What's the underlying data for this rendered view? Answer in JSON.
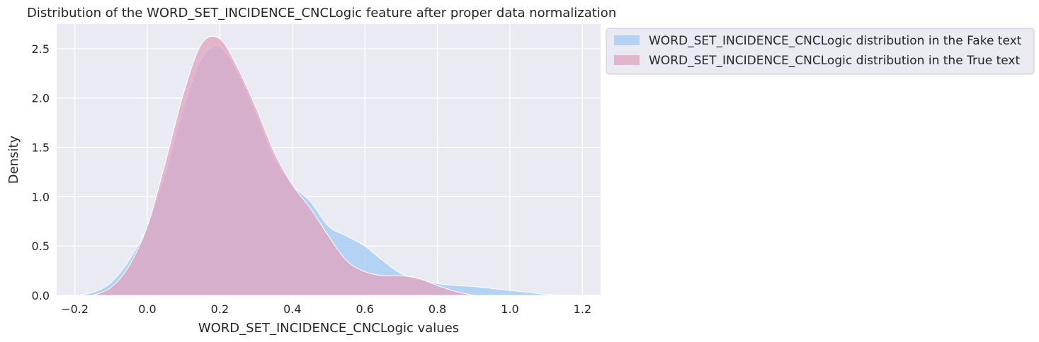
{
  "chart_data": {
    "type": "area",
    "title": "Distribution of the WORD_SET_INCIDENCE_CNCLogic feature after proper data normalization",
    "xlabel": "WORD_SET_INCIDENCE_CNCLogic values",
    "ylabel": "Density",
    "xlim": [
      -0.25,
      1.25
    ],
    "ylim": [
      0,
      2.75
    ],
    "xticks": [
      -0.2,
      0.0,
      0.2,
      0.4,
      0.6,
      0.8,
      1.0,
      1.2
    ],
    "xtick_labels": [
      "−0.2",
      "0.0",
      "0.2",
      "0.4",
      "0.6",
      "0.8",
      "1.0",
      "1.2"
    ],
    "yticks": [
      0.0,
      0.5,
      1.0,
      1.5,
      2.0,
      2.5
    ],
    "ytick_labels": [
      "0.0",
      "0.5",
      "1.0",
      "1.5",
      "2.0",
      "2.5"
    ],
    "grid": true,
    "legend_position": "outside-upper-right",
    "series": [
      {
        "name": "WORD_SET_INCIDENCE_CNCLogic distribution in the Fake text",
        "color": "#a1c9f4",
        "x": [
          -0.2,
          -0.15,
          -0.1,
          -0.05,
          0.0,
          0.05,
          0.1,
          0.15,
          0.2,
          0.25,
          0.3,
          0.35,
          0.4,
          0.45,
          0.5,
          0.55,
          0.6,
          0.65,
          0.7,
          0.75,
          0.8,
          0.85,
          0.9,
          0.95,
          1.0,
          1.05,
          1.1,
          1.15
        ],
        "y": [
          0.0,
          0.03,
          0.13,
          0.36,
          0.7,
          1.25,
          1.9,
          2.4,
          2.52,
          2.25,
          1.85,
          1.4,
          1.12,
          0.95,
          0.7,
          0.6,
          0.5,
          0.35,
          0.22,
          0.16,
          0.12,
          0.1,
          0.09,
          0.07,
          0.05,
          0.03,
          0.01,
          0.0
        ]
      },
      {
        "name": "WORD_SET_INCIDENCE_CNCLogic distribution in the True text",
        "color": "#e0a3bd",
        "x": [
          -0.15,
          -0.1,
          -0.05,
          0.0,
          0.05,
          0.1,
          0.15,
          0.2,
          0.25,
          0.3,
          0.35,
          0.4,
          0.45,
          0.5,
          0.55,
          0.6,
          0.65,
          0.7,
          0.75,
          0.8,
          0.85,
          0.9
        ],
        "y": [
          0.0,
          0.08,
          0.3,
          0.7,
          1.35,
          2.05,
          2.55,
          2.6,
          2.3,
          1.9,
          1.45,
          1.12,
          0.88,
          0.6,
          0.35,
          0.24,
          0.2,
          0.2,
          0.17,
          0.1,
          0.04,
          0.0
        ]
      }
    ]
  }
}
